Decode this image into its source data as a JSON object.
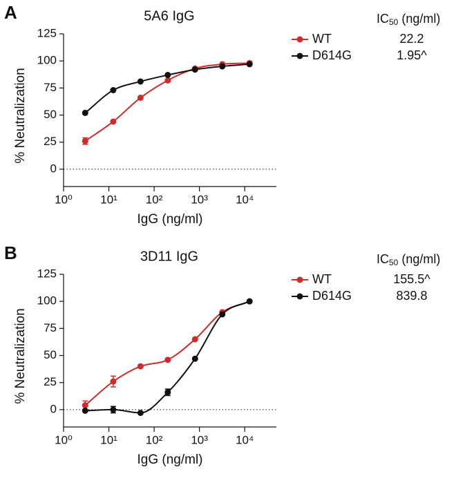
{
  "chart_data": [
    {
      "type": "scatter",
      "panel": "A",
      "title": "5A6 IgG",
      "xlabel": "IgG (ng/ml)",
      "ylabel": "% Neutralization",
      "log_x": true,
      "zero_line": true,
      "xlim": [
        1,
        50000
      ],
      "xticks": [
        {
          "value": 1,
          "label": "10⁰"
        },
        {
          "value": 10,
          "label": "10¹"
        },
        {
          "value": 100,
          "label": "10²"
        },
        {
          "value": 1000,
          "label": "10³"
        },
        {
          "value": 10000,
          "label": "10⁴"
        }
      ],
      "ylim": [
        -16,
        125
      ],
      "yticks": [
        0,
        25,
        50,
        75,
        100,
        125
      ],
      "ic50_header": {
        "main": "IC",
        "sub": "50",
        "unit": "(ng/ml)"
      },
      "x": [
        3,
        12.5,
        50,
        200,
        800,
        3200,
        12800
      ],
      "series": [
        {
          "name": "WT",
          "color": "#d02a2a",
          "ic50": "22.2",
          "values": [
            26,
            44,
            66,
            82,
            93,
            97,
            98
          ],
          "errors": [
            3,
            null,
            null,
            null,
            null,
            null,
            null
          ]
        },
        {
          "name": "D614G",
          "color": "#111111",
          "ic50": "1.95^",
          "values": [
            52,
            73,
            81,
            87,
            92,
            95,
            97
          ],
          "errors": [
            null,
            null,
            null,
            null,
            null,
            null,
            null
          ]
        }
      ]
    },
    {
      "type": "scatter",
      "panel": "B",
      "title": "3D11 IgG",
      "xlabel": "IgG (ng/ml)",
      "ylabel": "% Neutralization",
      "log_x": true,
      "zero_line": true,
      "xlim": [
        1,
        50000
      ],
      "xticks": [
        {
          "value": 1,
          "label": "10⁰"
        },
        {
          "value": 10,
          "label": "10¹"
        },
        {
          "value": 100,
          "label": "10²"
        },
        {
          "value": 1000,
          "label": "10³"
        },
        {
          "value": 10000,
          "label": "10⁴"
        }
      ],
      "ylim": [
        -16,
        125
      ],
      "yticks": [
        0,
        25,
        50,
        75,
        100,
        125
      ],
      "ic50_header": {
        "main": "IC",
        "sub": "50",
        "unit": "(ng/ml)"
      },
      "x": [
        3,
        12.5,
        50,
        200,
        800,
        3200,
        12800
      ],
      "series": [
        {
          "name": "WT",
          "color": "#d02a2a",
          "ic50": "155.5^",
          "values": [
            4,
            26,
            40,
            46,
            65,
            90,
            100
          ],
          "errors": [
            4,
            5,
            null,
            null,
            null,
            null,
            null
          ]
        },
        {
          "name": "D614G",
          "color": "#111111",
          "ic50": "839.8",
          "values": [
            -1,
            0,
            -3,
            16,
            47,
            88,
            100
          ],
          "errors": [
            null,
            3,
            null,
            3,
            null,
            null,
            null
          ]
        }
      ]
    }
  ]
}
